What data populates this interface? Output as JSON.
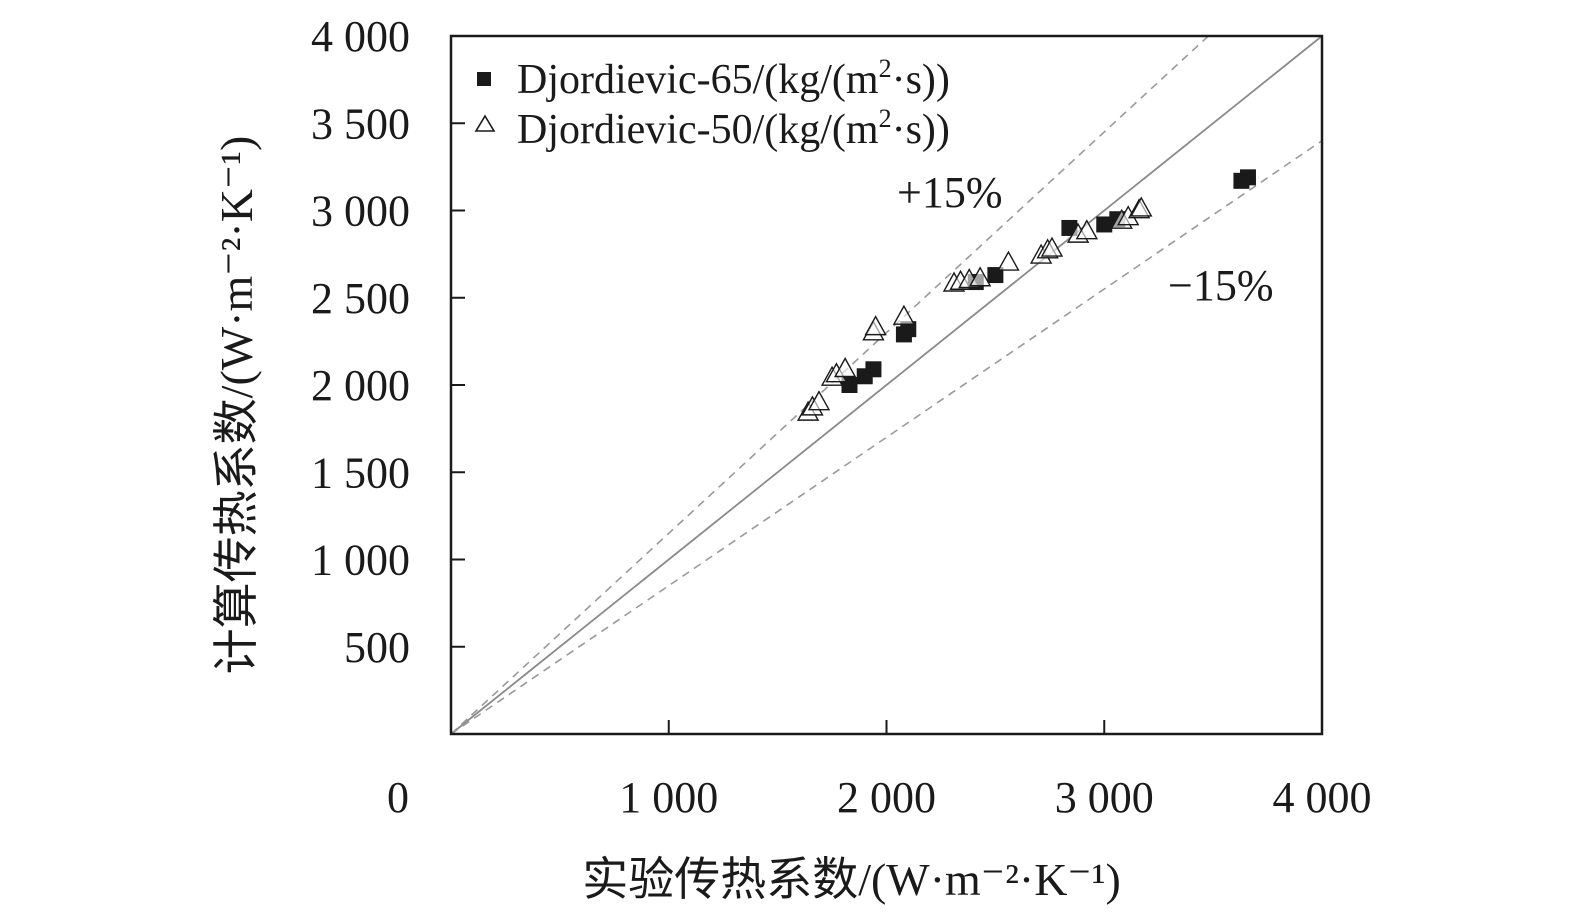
{
  "chart_data": {
    "type": "scatter",
    "xlabel": "实验传热系数/(W·m⁻²·K⁻¹)",
    "ylabel": "计算传热系数/(W·m⁻²·K⁻¹)",
    "xlim": [
      0,
      4000
    ],
    "ylim": [
      0,
      4000
    ],
    "x_ticks": [
      0,
      1000,
      2000,
      3000,
      4000
    ],
    "x_tick_labels": [
      "0",
      "1 000",
      "2 000",
      "3 000",
      "4 000"
    ],
    "y_ticks": [
      500,
      1000,
      1500,
      2000,
      2500,
      3000,
      3500,
      4000
    ],
    "y_tick_labels": [
      "500",
      "1 000",
      "1 500",
      "2 000",
      "2 500",
      "3 000",
      "3 500",
      "4 000"
    ],
    "legend": {
      "position": "top-left",
      "entries": [
        {
          "prefix": "Djordievic-65/(kg/(m",
          "sup": "2",
          "suffix": "·s))"
        },
        {
          "prefix": "Djordievic-50/(kg/(m",
          "sup": "2",
          "suffix": "·s))"
        }
      ]
    },
    "reference_lines": [
      {
        "name": "parity",
        "slope": 1.0,
        "style": "solid",
        "label": ""
      },
      {
        "name": "plus15",
        "slope": 1.15,
        "style": "dashed",
        "label": "+15%"
      },
      {
        "name": "minus15",
        "slope": 0.85,
        "style": "dashed",
        "label": "−15%"
      }
    ],
    "series": [
      {
        "name": "Djordievic-65/(kg/(m²·s))",
        "marker": "filled-square",
        "color": "#1a1a1a",
        "points": [
          [
            1830,
            2000
          ],
          [
            1900,
            2050
          ],
          [
            1940,
            2090
          ],
          [
            2080,
            2290
          ],
          [
            2100,
            2320
          ],
          [
            2410,
            2590
          ],
          [
            2500,
            2630
          ],
          [
            2840,
            2900
          ],
          [
            3000,
            2920
          ],
          [
            3060,
            2950
          ],
          [
            3630,
            3170
          ],
          [
            3660,
            3190
          ]
        ]
      },
      {
        "name": "Djordievic-50/(kg/(m²·s))",
        "marker": "open-triangle",
        "color": "#1a1a1a",
        "points": [
          [
            1640,
            1840
          ],
          [
            1660,
            1870
          ],
          [
            1690,
            1900
          ],
          [
            1750,
            2040
          ],
          [
            1770,
            2060
          ],
          [
            1810,
            2090
          ],
          [
            1940,
            2300
          ],
          [
            1950,
            2330
          ],
          [
            2080,
            2390
          ],
          [
            2310,
            2580
          ],
          [
            2340,
            2590
          ],
          [
            2380,
            2600
          ],
          [
            2430,
            2610
          ],
          [
            2560,
            2700
          ],
          [
            2710,
            2740
          ],
          [
            2740,
            2770
          ],
          [
            2760,
            2780
          ],
          [
            2880,
            2860
          ],
          [
            2920,
            2880
          ],
          [
            3080,
            2940
          ],
          [
            3110,
            2960
          ],
          [
            3160,
            3000
          ],
          [
            3170,
            3010
          ]
        ]
      }
    ]
  }
}
